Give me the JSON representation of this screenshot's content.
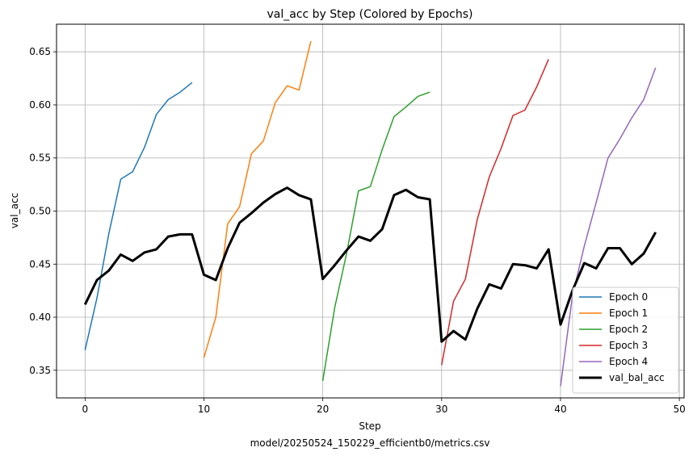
{
  "chart_data": {
    "type": "line",
    "title": "val_acc by Step (Colored by Epochs)",
    "xlabel": "Step",
    "ylabel": "val_acc",
    "caption": "model/20250524_150229_efficientb0/metrics.csv",
    "xlim": [
      -2.4,
      50.4
    ],
    "ylim": [
      0.324,
      0.676
    ],
    "xticks": [
      0,
      10,
      20,
      30,
      40,
      50
    ],
    "yticks": [
      0.35,
      0.4,
      0.45,
      0.5,
      0.55,
      0.6,
      0.65
    ],
    "grid": true,
    "legend_position": "lower-right",
    "series": [
      {
        "name": "Epoch 0",
        "color": "#1f77b4",
        "width": 1.5,
        "x": [
          0,
          1,
          2,
          3,
          4,
          5,
          6,
          7,
          8,
          9
        ],
        "y": [
          0.369,
          0.418,
          0.479,
          0.53,
          0.537,
          0.56,
          0.591,
          0.605,
          0.612,
          0.621
        ]
      },
      {
        "name": "Epoch 1",
        "color": "#ff7f0e",
        "width": 1.5,
        "x": [
          10,
          11,
          12,
          13,
          14,
          15,
          16,
          17,
          18,
          19
        ],
        "y": [
          0.362,
          0.4,
          0.488,
          0.504,
          0.554,
          0.566,
          0.602,
          0.618,
          0.614,
          0.66
        ]
      },
      {
        "name": "Epoch 2",
        "color": "#2ca02c",
        "width": 1.5,
        "x": [
          20,
          21,
          22,
          23,
          24,
          25,
          26,
          27,
          28,
          29
        ],
        "y": [
          0.34,
          0.409,
          0.46,
          0.519,
          0.523,
          0.558,
          0.589,
          0.598,
          0.608,
          0.612
        ]
      },
      {
        "name": "Epoch 3",
        "color": "#d62728",
        "width": 1.5,
        "x": [
          30,
          31,
          32,
          33,
          34,
          35,
          36,
          37,
          38,
          39
        ],
        "y": [
          0.355,
          0.415,
          0.436,
          0.492,
          0.532,
          0.559,
          0.59,
          0.595,
          0.617,
          0.643
        ]
      },
      {
        "name": "Epoch 4",
        "color": "#9467bd",
        "width": 1.5,
        "x": [
          40,
          41,
          42,
          43,
          44,
          45,
          46,
          47,
          48
        ],
        "y": [
          0.335,
          0.42,
          0.467,
          0.508,
          0.55,
          0.568,
          0.588,
          0.605,
          0.635
        ]
      },
      {
        "name": "val_bal_acc",
        "color": "#000000",
        "width": 3,
        "x": [
          0,
          1,
          2,
          3,
          4,
          5,
          6,
          7,
          8,
          9,
          10,
          11,
          12,
          13,
          14,
          15,
          16,
          17,
          18,
          19,
          20,
          21,
          22,
          23,
          24,
          25,
          26,
          27,
          28,
          29,
          30,
          31,
          32,
          33,
          34,
          35,
          36,
          37,
          38,
          39,
          40,
          41,
          42,
          43,
          44,
          45,
          46,
          47,
          48
        ],
        "y": [
          0.412,
          0.435,
          0.444,
          0.459,
          0.453,
          0.461,
          0.464,
          0.476,
          0.478,
          0.478,
          0.44,
          0.435,
          0.465,
          0.489,
          0.498,
          0.508,
          0.516,
          0.522,
          0.515,
          0.511,
          0.436,
          0.449,
          0.463,
          0.476,
          0.472,
          0.483,
          0.515,
          0.52,
          0.513,
          0.511,
          0.377,
          0.387,
          0.379,
          0.408,
          0.431,
          0.427,
          0.45,
          0.449,
          0.446,
          0.464,
          0.393,
          0.425,
          0.451,
          0.446,
          0.465,
          0.465,
          0.45,
          0.46,
          0.48
        ]
      }
    ]
  }
}
